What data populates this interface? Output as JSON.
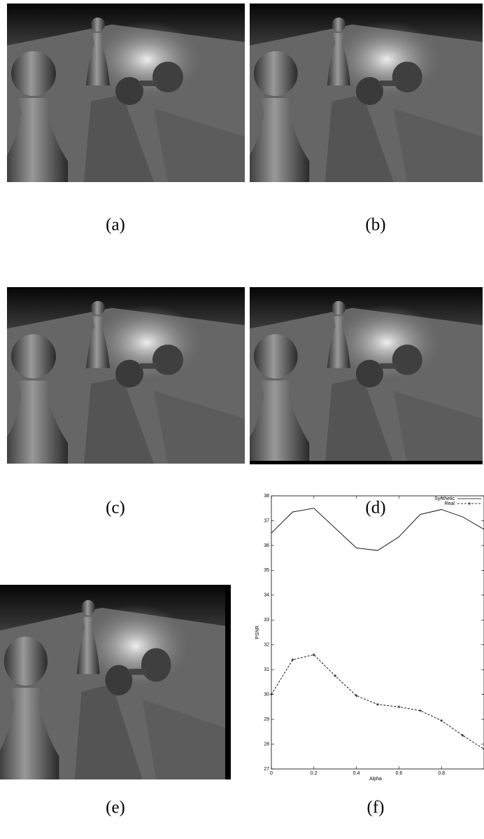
{
  "figure": {
    "panels": [
      {
        "label": "(a)"
      },
      {
        "label": "(b)"
      },
      {
        "label": "(c)"
      },
      {
        "label": "(d)"
      },
      {
        "label": "(e)"
      },
      {
        "label": "(f)"
      }
    ]
  },
  "chart_data": {
    "type": "line",
    "x_label": "Alpha",
    "y_label": "PSNR",
    "x": [
      0,
      0.1,
      0.2,
      0.3,
      0.4,
      0.5,
      0.6,
      0.7,
      0.8,
      0.9,
      1
    ],
    "series": [
      {
        "name": "Synthetic",
        "color": "#000000",
        "dash": false,
        "markers": false,
        "values": [
          36.5,
          37.35,
          37.5,
          36.7,
          35.9,
          35.8,
          36.35,
          37.25,
          37.45,
          37.15,
          36.65
        ]
      },
      {
        "name": "Real",
        "color": "#000000",
        "dash": true,
        "markers": true,
        "values": [
          30.0,
          31.4,
          31.6,
          30.75,
          29.95,
          29.6,
          29.5,
          29.35,
          28.95,
          28.35,
          27.8
        ]
      }
    ],
    "xlim": [
      0,
      1
    ],
    "xticks": [
      0,
      0.2,
      0.4,
      0.6,
      0.8
    ],
    "ylim": [
      27,
      38
    ],
    "yticks": [
      27,
      28,
      29,
      30,
      31,
      32,
      33,
      34,
      35,
      36,
      37,
      38
    ],
    "legend": "upper right",
    "grid": false
  }
}
